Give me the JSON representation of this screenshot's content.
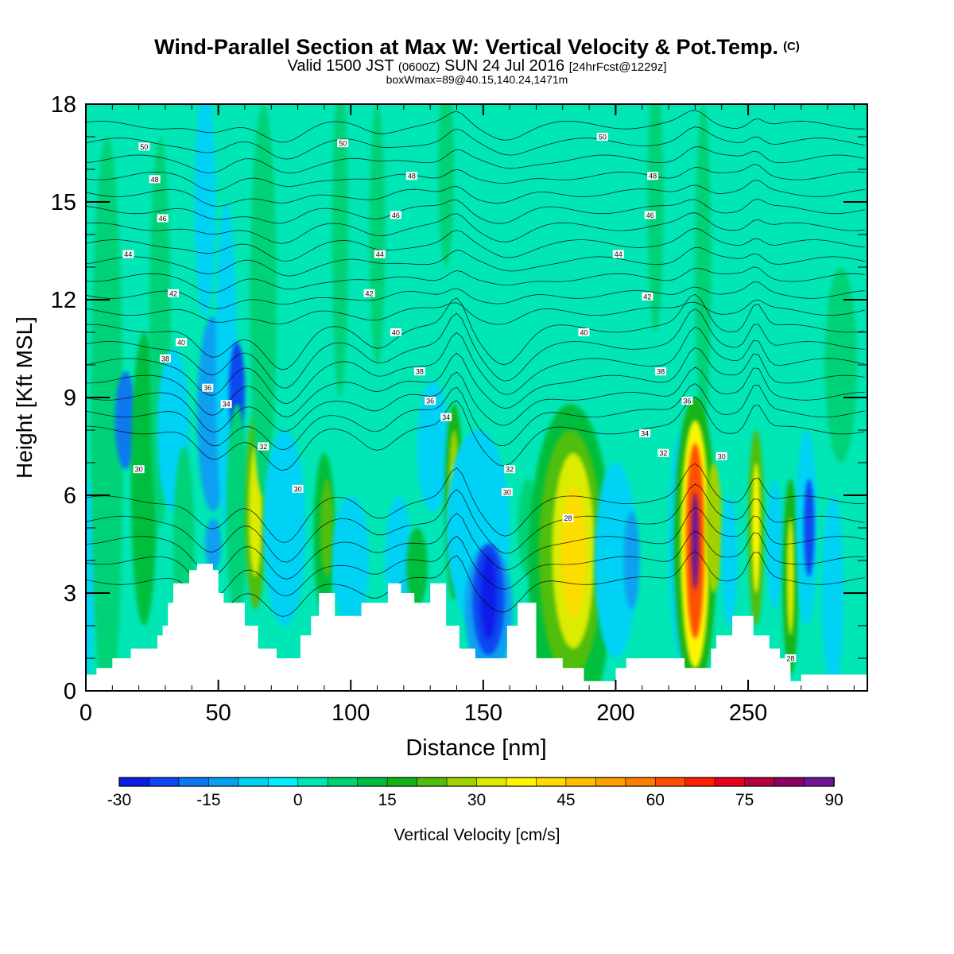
{
  "header": {
    "title": "Wind-Parallel Section at Max W: Vertical Velocity & Pot.Temp.",
    "title_tag": "(C)",
    "valid_prefix": "Valid 1500 JST",
    "valid_zulu": "(0600Z)",
    "valid_date": "SUN 24 Jul 2016",
    "forecast_tag": "[24hrFcst@1229z]",
    "box_info": "boxWmax=89@40.15,140.24,1471m"
  },
  "chart_data": {
    "type": "heatmap",
    "xlabel": "Distance [nm]",
    "ylabel": "Height [Kft MSL]",
    "xlim": [
      0,
      295
    ],
    "ylim": [
      0,
      18
    ],
    "x_ticks": [
      "0",
      "50",
      "100",
      "150",
      "200",
      "250"
    ],
    "y_ticks": [
      "0",
      "3",
      "6",
      "9",
      "12",
      "15",
      "18"
    ],
    "background_value": 0,
    "colorbar": {
      "label": "Vertical Velocity [cm/s]",
      "tick_labels": [
        "-30",
        "-15",
        "0",
        "15",
        "30",
        "45",
        "60",
        "75",
        "90"
      ],
      "min": -30,
      "max": 90,
      "colors": [
        "#0a1ee6",
        "#0f46f0",
        "#0a78f0",
        "#0aa0f0",
        "#00d2f5",
        "#00f0ff",
        "#00e6b4",
        "#00d278",
        "#00be3c",
        "#14b414",
        "#50be0a",
        "#a0d200",
        "#dceb00",
        "#fff500",
        "#ffdc00",
        "#ffbe00",
        "#ffa000",
        "#ff7d00",
        "#ff5000",
        "#ff1e00",
        "#e6001e",
        "#b4003c",
        "#8c0064",
        "#6e1496"
      ]
    },
    "terrain_kft": [
      [
        0,
        0.5
      ],
      [
        4,
        0.5
      ],
      [
        4,
        0.7
      ],
      [
        10,
        0.7
      ],
      [
        10,
        1.0
      ],
      [
        17,
        1.0
      ],
      [
        17,
        1.3
      ],
      [
        27,
        1.3
      ],
      [
        27,
        1.7
      ],
      [
        29,
        1.7
      ],
      [
        29,
        2.0
      ],
      [
        31,
        2.0
      ],
      [
        31,
        2.7
      ],
      [
        33,
        2.7
      ],
      [
        33,
        3.3
      ],
      [
        39,
        3.3
      ],
      [
        39,
        3.7
      ],
      [
        42,
        3.7
      ],
      [
        42,
        3.9
      ],
      [
        48,
        3.9
      ],
      [
        48,
        3.7
      ],
      [
        50,
        3.7
      ],
      [
        50,
        3.0
      ],
      [
        52,
        3.0
      ],
      [
        52,
        2.7
      ],
      [
        60,
        2.7
      ],
      [
        60,
        2.0
      ],
      [
        65,
        2.0
      ],
      [
        65,
        1.3
      ],
      [
        72,
        1.3
      ],
      [
        72,
        1.0
      ],
      [
        81,
        1.0
      ],
      [
        81,
        1.7
      ],
      [
        85,
        1.7
      ],
      [
        85,
        2.3
      ],
      [
        88,
        2.3
      ],
      [
        88,
        3.0
      ],
      [
        94,
        3.0
      ],
      [
        94,
        2.3
      ],
      [
        104,
        2.3
      ],
      [
        104,
        2.7
      ],
      [
        114,
        2.7
      ],
      [
        114,
        3.3
      ],
      [
        119,
        3.3
      ],
      [
        119,
        3.0
      ],
      [
        124,
        3.0
      ],
      [
        124,
        2.7
      ],
      [
        130,
        2.7
      ],
      [
        130,
        3.3
      ],
      [
        136,
        3.3
      ],
      [
        136,
        2.0
      ],
      [
        141,
        2.0
      ],
      [
        141,
        1.3
      ],
      [
        147,
        1.3
      ],
      [
        147,
        1.0
      ],
      [
        159,
        1.0
      ],
      [
        159,
        2.0
      ],
      [
        163,
        2.0
      ],
      [
        163,
        2.7
      ],
      [
        170,
        2.7
      ],
      [
        170,
        1.0
      ],
      [
        180,
        1.0
      ],
      [
        180,
        0.7
      ],
      [
        188,
        0.7
      ],
      [
        188,
        0.3
      ],
      [
        200,
        0.3
      ],
      [
        200,
        0.7
      ],
      [
        204,
        0.7
      ],
      [
        204,
        1.0
      ],
      [
        226,
        1.0
      ],
      [
        226,
        0.7
      ],
      [
        236,
        0.7
      ],
      [
        236,
        1.3
      ],
      [
        238,
        1.3
      ],
      [
        238,
        1.7
      ],
      [
        244,
        1.7
      ],
      [
        244,
        2.3
      ],
      [
        252,
        2.3
      ],
      [
        252,
        1.7
      ],
      [
        258,
        1.7
      ],
      [
        258,
        1.3
      ],
      [
        262,
        1.3
      ],
      [
        262,
        1.0
      ],
      [
        266,
        1.0
      ],
      [
        266,
        0.3
      ],
      [
        270,
        0.3
      ],
      [
        270,
        0.5
      ],
      [
        295,
        0.5
      ]
    ],
    "vertical_velocity_cells": [
      {
        "x": 0.5,
        "y": 3.5,
        "rx": 3,
        "ry": 3,
        "v": -6
      },
      {
        "x": 8,
        "y": 8,
        "rx": 6,
        "ry": 9,
        "v": 7
      },
      {
        "x": 15,
        "y": 8.3,
        "rx": 4,
        "ry": 1.5,
        "v": -18
      },
      {
        "x": 22,
        "y": 6.5,
        "rx": 5,
        "ry": 4.5,
        "v": 12
      },
      {
        "x": 28,
        "y": 11,
        "rx": 4,
        "ry": 6,
        "v": 7
      },
      {
        "x": 33,
        "y": 8,
        "rx": 6,
        "ry": 2.5,
        "v": -9
      },
      {
        "x": 37,
        "y": 4.5,
        "rx": 4,
        "ry": 3,
        "v": 8
      },
      {
        "x": 45,
        "y": 15,
        "rx": 4,
        "ry": 3.5,
        "v": -9
      },
      {
        "x": 48,
        "y": 8.5,
        "rx": 6,
        "ry": 3,
        "v": -14
      },
      {
        "x": 48,
        "y": 4.5,
        "rx": 3,
        "ry": 0.8,
        "v": -14
      },
      {
        "x": 53,
        "y": 10,
        "rx": 4,
        "ry": 5,
        "v": -6
      },
      {
        "x": 57,
        "y": 9.2,
        "rx": 3,
        "ry": 1.5,
        "v": -21
      },
      {
        "x": 57,
        "y": 5.5,
        "rx": 4,
        "ry": 3.3,
        "v": 9
      },
      {
        "x": 64,
        "y": 5.5,
        "rx": 4,
        "ry": 3,
        "v": 22
      },
      {
        "x": 64,
        "y": 5.5,
        "rx": 2.5,
        "ry": 2,
        "v": 30
      },
      {
        "x": 67,
        "y": 12,
        "rx": 5,
        "ry": 6,
        "v": 7
      },
      {
        "x": 75,
        "y": 5,
        "rx": 8,
        "ry": 3,
        "v": -6
      },
      {
        "x": 90,
        "y": 4.8,
        "rx": 4,
        "ry": 2.5,
        "v": 13
      },
      {
        "x": 91,
        "y": 5,
        "rx": 2.5,
        "ry": 1.5,
        "v": 20
      },
      {
        "x": 96,
        "y": 14,
        "rx": 3,
        "ry": 5,
        "v": 7
      },
      {
        "x": 100,
        "y": 4,
        "rx": 7,
        "ry": 2,
        "v": -6
      },
      {
        "x": 110,
        "y": 14,
        "rx": 3,
        "ry": 4,
        "v": 7
      },
      {
        "x": 118,
        "y": 4,
        "rx": 5,
        "ry": 2,
        "v": -8
      },
      {
        "x": 125,
        "y": 3.8,
        "rx": 4,
        "ry": 1.2,
        "v": 12
      },
      {
        "x": 131,
        "y": 7.5,
        "rx": 6,
        "ry": 2,
        "v": -10
      },
      {
        "x": 136,
        "y": 16,
        "rx": 3,
        "ry": 3,
        "v": 7
      },
      {
        "x": 139,
        "y": 5.8,
        "rx": 3.5,
        "ry": 3,
        "v": 16
      },
      {
        "x": 139,
        "y": 5.8,
        "rx": 2.2,
        "ry": 2.2,
        "v": 27
      },
      {
        "x": 139,
        "y": 5.8,
        "rx": 1.1,
        "ry": 1.2,
        "v": 38
      },
      {
        "x": 148,
        "y": 5,
        "rx": 12,
        "ry": 3,
        "v": -6
      },
      {
        "x": 152,
        "y": 2.5,
        "rx": 9,
        "ry": 2,
        "v": -14
      },
      {
        "x": 152,
        "y": 2.8,
        "rx": 6,
        "ry": 1.7,
        "v": -22
      },
      {
        "x": 152,
        "y": 2.9,
        "rx": 3,
        "ry": 1.3,
        "v": -28
      },
      {
        "x": 167,
        "y": 5,
        "rx": 4,
        "ry": 1.5,
        "v": 6
      },
      {
        "x": 183,
        "y": 3.8,
        "rx": 16,
        "ry": 5,
        "v": 10
      },
      {
        "x": 183,
        "y": 4.2,
        "rx": 12,
        "ry": 3.8,
        "v": 20
      },
      {
        "x": 184,
        "y": 4.3,
        "rx": 8,
        "ry": 3,
        "v": 30
      },
      {
        "x": 184,
        "y": 4.3,
        "rx": 4.5,
        "ry": 2,
        "v": 40
      },
      {
        "x": 200,
        "y": 4,
        "rx": 8,
        "ry": 3,
        "v": -7
      },
      {
        "x": 206,
        "y": 4,
        "rx": 3,
        "ry": 1.5,
        "v": -14
      },
      {
        "x": 215,
        "y": 15,
        "rx": 3,
        "ry": 4,
        "v": 7
      },
      {
        "x": 225,
        "y": 4.5,
        "rx": 5,
        "ry": 3.5,
        "v": -8
      },
      {
        "x": 233,
        "y": 13,
        "rx": 3,
        "ry": 5,
        "v": 7
      },
      {
        "x": 230,
        "y": 4.5,
        "rx": 8,
        "ry": 4.5,
        "v": 15
      },
      {
        "x": 230,
        "y": 4.5,
        "rx": 5.5,
        "ry": 3.8,
        "v": 35
      },
      {
        "x": 230,
        "y": 4.6,
        "rx": 3.5,
        "ry": 3,
        "v": 60
      },
      {
        "x": 230,
        "y": 4.6,
        "rx": 1.5,
        "ry": 1.5,
        "v": 88
      },
      {
        "x": 237,
        "y": 5,
        "rx": 3,
        "ry": 2,
        "v": 25
      },
      {
        "x": 243,
        "y": 4,
        "rx": 3,
        "ry": 2,
        "v": -8
      },
      {
        "x": 253,
        "y": 5,
        "rx": 3,
        "ry": 3,
        "v": 20
      },
      {
        "x": 253,
        "y": 5,
        "rx": 1.5,
        "ry": 2,
        "v": 37
      },
      {
        "x": 260,
        "y": 4.5,
        "rx": 3,
        "ry": 2,
        "v": -8
      },
      {
        "x": 266,
        "y": 3.5,
        "rx": 3,
        "ry": 3,
        "v": 16
      },
      {
        "x": 266,
        "y": 3.5,
        "rx": 1.4,
        "ry": 1.8,
        "v": 30
      },
      {
        "x": 272,
        "y": 5,
        "rx": 4,
        "ry": 3,
        "v": -10
      },
      {
        "x": 273,
        "y": 5,
        "rx": 2,
        "ry": 1.5,
        "v": -22
      },
      {
        "x": 282,
        "y": 3,
        "rx": 4,
        "ry": 3,
        "v": -6
      },
      {
        "x": 285,
        "y": 10,
        "rx": 6,
        "ry": 3,
        "v": 8
      }
    ],
    "theta_contour_levels": [
      28,
      29,
      30,
      31,
      32,
      33,
      34,
      35,
      36,
      37,
      38,
      39,
      40,
      41,
      42,
      43,
      44,
      45,
      46,
      47,
      48,
      49,
      50,
      51
    ],
    "theta_contour_labels": [
      {
        "text": "50",
        "x": 22,
        "y": 16.7
      },
      {
        "text": "50",
        "x": 97,
        "y": 16.8
      },
      {
        "text": "50",
        "x": 195,
        "y": 17.0
      },
      {
        "text": "48",
        "x": 26,
        "y": 15.7
      },
      {
        "text": "48",
        "x": 123,
        "y": 15.8
      },
      {
        "text": "48",
        "x": 214,
        "y": 15.8
      },
      {
        "text": "46",
        "x": 29,
        "y": 14.5
      },
      {
        "text": "46",
        "x": 117,
        "y": 14.6
      },
      {
        "text": "46",
        "x": 213,
        "y": 14.6
      },
      {
        "text": "44",
        "x": 16,
        "y": 13.4
      },
      {
        "text": "44",
        "x": 111,
        "y": 13.4
      },
      {
        "text": "44",
        "x": 201,
        "y": 13.4
      },
      {
        "text": "42",
        "x": 33,
        "y": 12.2
      },
      {
        "text": "42",
        "x": 107,
        "y": 12.2
      },
      {
        "text": "42",
        "x": 212,
        "y": 12.1
      },
      {
        "text": "40",
        "x": 36,
        "y": 10.7
      },
      {
        "text": "40",
        "x": 117,
        "y": 11.0
      },
      {
        "text": "40",
        "x": 188,
        "y": 11.0
      },
      {
        "text": "38",
        "x": 30,
        "y": 10.2
      },
      {
        "text": "38",
        "x": 126,
        "y": 9.8
      },
      {
        "text": "38",
        "x": 217,
        "y": 9.8
      },
      {
        "text": "36",
        "x": 46,
        "y": 9.3
      },
      {
        "text": "36",
        "x": 130,
        "y": 8.9
      },
      {
        "text": "36",
        "x": 227,
        "y": 8.9
      },
      {
        "text": "34",
        "x": 53,
        "y": 8.8
      },
      {
        "text": "34",
        "x": 136,
        "y": 8.4
      },
      {
        "text": "34",
        "x": 211,
        "y": 7.9
      },
      {
        "text": "32",
        "x": 67,
        "y": 7.5
      },
      {
        "text": "32",
        "x": 160,
        "y": 6.8
      },
      {
        "text": "32",
        "x": 218,
        "y": 7.3
      },
      {
        "text": "30",
        "x": 20,
        "y": 6.8
      },
      {
        "text": "30",
        "x": 80,
        "y": 6.2
      },
      {
        "text": "30",
        "x": 159,
        "y": 6.1
      },
      {
        "text": "30",
        "x": 240,
        "y": 7.2
      },
      {
        "text": "28",
        "x": 182,
        "y": 5.3
      },
      {
        "text": "28",
        "x": 266,
        "y": 1.0
      }
    ]
  }
}
